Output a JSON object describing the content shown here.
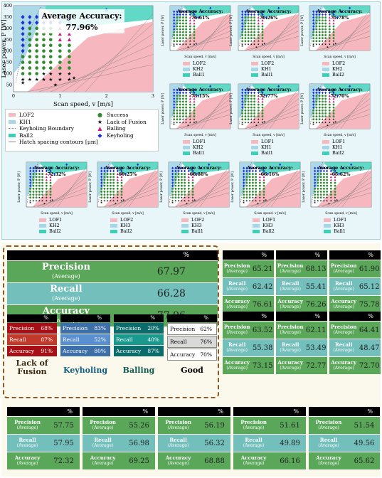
{
  "colors": {
    "lof": "#f6b8be",
    "kh": "#a9d6e6",
    "ball": "#3bd0b8",
    "success": "#2e8b2e",
    "lack": "#111111",
    "balling": "#c0237a",
    "keyholing": "#1a2fd6",
    "card_green": "#5aa75a",
    "card_teal": "#72bfbc"
  },
  "main_plot": {
    "title": "Average Accuracy:",
    "value": "77.96%",
    "ylabel": "Laser power, P [W]",
    "xlabel": "Scan speed, v [m/s]",
    "yticks": [
      "50",
      "100",
      "150",
      "200",
      "250",
      "300",
      "350",
      "400"
    ],
    "xticks": [
      "0",
      "1",
      "2",
      "3"
    ]
  },
  "legend": {
    "lof2": "LOF2",
    "kh1": "KH1",
    "boundary": "Keyholing Boundary",
    "ball2": "Ball2",
    "hatch": "Hatch spacing contours [μm]",
    "success": "Success",
    "lack": "Lack of Fusion",
    "balling": "Balling",
    "keyholing": "Keyholing"
  },
  "small_common": {
    "title": "Average Accuracy:",
    "ylabel": "Laser power, P [W]",
    "xlabel": "Scan speed, v [m/s]"
  },
  "small_plots": [
    {
      "acc": "76.61%",
      "l1": "LOF2",
      "l2": "KH2",
      "l3": "Ball1"
    },
    {
      "acc": "76.26%",
      "l1": "LOF2",
      "l2": "KH1",
      "l3": "Ball1"
    },
    {
      "acc": "75.78%",
      "l1": "LOF2",
      "l2": "KH2",
      "l3": "Ball2"
    },
    {
      "acc": "73.15%",
      "l1": "LOF1",
      "l2": "KH2",
      "l3": "Ball1"
    },
    {
      "acc": "72.77%",
      "l1": "LOF1",
      "l2": "KH1",
      "l3": "Ball1"
    },
    {
      "acc": "72.70%",
      "l1": "LOF1",
      "l2": "KH1",
      "l3": "Ball2"
    },
    {
      "acc": "72.32%",
      "l1": "LOF1",
      "l2": "KH2",
      "l3": "Ball2"
    },
    {
      "acc": "69.25%",
      "l1": "LOF2",
      "l2": "KH3",
      "l3": "Ball2"
    },
    {
      "acc": "68.88%",
      "l1": "LOF2",
      "l2": "KH3",
      "l3": "Ball1"
    },
    {
      "acc": "66.16%",
      "l1": "LOF1",
      "l2": "KH3",
      "l3": "Ball2"
    },
    {
      "acc": "65.62%",
      "l1": "LOF1",
      "l2": "KH3",
      "l3": "Ball1"
    }
  ],
  "labels": {
    "pct": "%",
    "precision": "Precision",
    "recall": "Recall",
    "accuracy": "Accuracy",
    "average": "(Average)"
  },
  "main_table": {
    "precision": "67.97",
    "recall": "66.28",
    "accuracy": "77.96"
  },
  "class_tables": [
    {
      "name": "Lack of Fusion",
      "precision": "68%",
      "recall": "87%",
      "accuracy": "91%"
    },
    {
      "name": "Keyholing",
      "precision": "83%",
      "recall": "52%",
      "accuracy": "80%"
    },
    {
      "name": "Balling",
      "precision": "20%",
      "recall": "40%",
      "accuracy": "87%"
    },
    {
      "name": "Good",
      "precision": "62%",
      "recall": "76%",
      "accuracy": "70%"
    }
  ],
  "chart_data": {
    "type": "table",
    "title": "",
    "columns": [
      "Precision (Average) %",
      "Recall (Average) %",
      "Accuracy (Average) %"
    ],
    "rows": [
      {
        "precision": "65.21",
        "recall": "62.42",
        "accuracy": "76.61"
      },
      {
        "precision": "68.13",
        "recall": "55.41",
        "accuracy": "76.26"
      },
      {
        "precision": "61.90",
        "recall": "65.12",
        "accuracy": "75.78"
      },
      {
        "precision": "63.52",
        "recall": "55.38",
        "accuracy": "73.15"
      },
      {
        "precision": "62.11",
        "recall": "53.49",
        "accuracy": "72.77"
      },
      {
        "precision": "64.41",
        "recall": "48.47",
        "accuracy": "72.70"
      },
      {
        "precision": "57.75",
        "recall": "57.95",
        "accuracy": "72.32"
      },
      {
        "precision": "55.26",
        "recall": "56.98",
        "accuracy": "69.25"
      },
      {
        "precision": "56.19",
        "recall": "56.32",
        "accuracy": "68.88"
      },
      {
        "precision": "51.61",
        "recall": "49.89",
        "accuracy": "66.16"
      },
      {
        "precision": "51.54",
        "recall": "49.56",
        "accuracy": "65.62"
      }
    ]
  }
}
